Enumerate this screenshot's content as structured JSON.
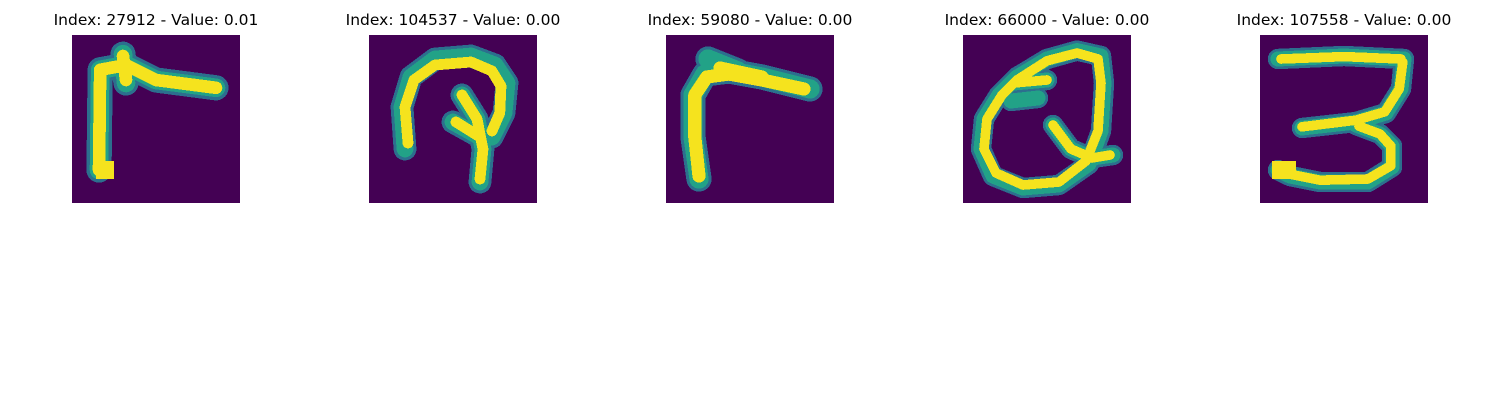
{
  "chart_data": [
    {
      "type": "heatmap",
      "title": "Index: 27912 - Value: 0.01",
      "index": 27912,
      "value": 0.01,
      "grid": false,
      "axes": "off",
      "colormap": "viridis",
      "depicted_glyph": "Γ-shaped stroke (vertical bar with horizontal bar to the right at top)"
    },
    {
      "type": "heatmap",
      "title": "Index: 104537 - Value: 0.00",
      "index": 104537,
      "value": 0.0,
      "grid": false,
      "axes": "off",
      "colormap": "viridis",
      "depicted_glyph": "hook / upside-down U with inner stroke"
    },
    {
      "type": "heatmap",
      "title": "Index: 59080 - Value: 0.00",
      "index": 59080,
      "value": 0.0,
      "grid": false,
      "axes": "off",
      "colormap": "viridis",
      "depicted_glyph": "Γ-shaped stroke, slanted"
    },
    {
      "type": "heatmap",
      "title": "Index: 66000 - Value: 0.00",
      "index": 66000,
      "value": 0.0,
      "grid": false,
      "axes": "off",
      "colormap": "viridis",
      "depicted_glyph": "Q"
    },
    {
      "type": "heatmap",
      "title": "Index: 107558 - Value: 0.00",
      "index": 107558,
      "value": 0.0,
      "grid": false,
      "axes": "off",
      "colormap": "viridis",
      "depicted_glyph": "3"
    }
  ],
  "colors": {
    "background": "#440154",
    "stroke_high": "#f5e31e",
    "stroke_mid": "#22a287",
    "stroke_low": "#2c6f8e"
  }
}
